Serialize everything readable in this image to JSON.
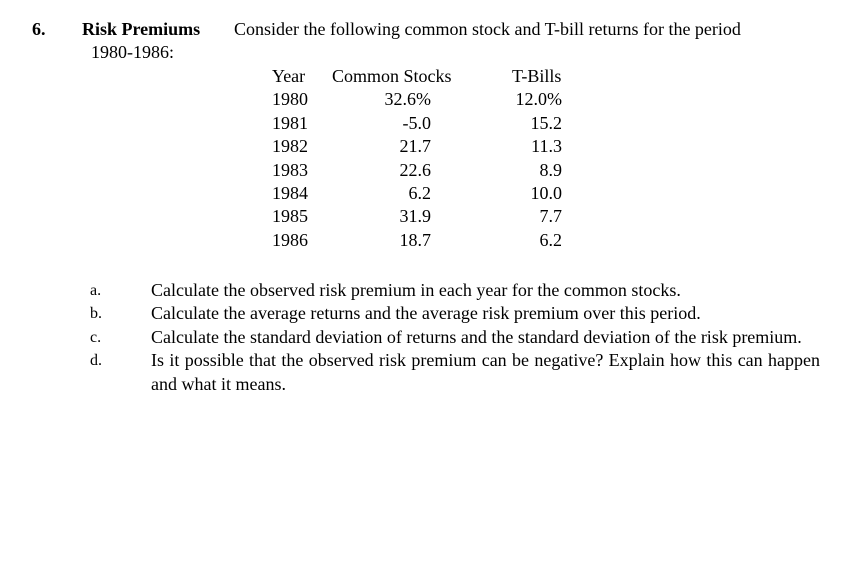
{
  "problem": {
    "number": "6.",
    "title": "Risk Premiums",
    "intro": "Consider the following common stock and T-bill returns for the period",
    "period": "1980-1986:"
  },
  "table": {
    "headers": {
      "year": "Year",
      "stocks": "Common Stocks",
      "bills": "T-Bills"
    },
    "rows": [
      {
        "year": "1980",
        "stocks": "32.6%",
        "bills": "12.0%"
      },
      {
        "year": "1981",
        "stocks": "-5.0",
        "bills": "15.2"
      },
      {
        "year": "1982",
        "stocks": "21.7",
        "bills": "11.3"
      },
      {
        "year": "1983",
        "stocks": "22.6",
        "bills": "8.9"
      },
      {
        "year": "1984",
        "stocks": "6.2",
        "bills": "10.0"
      },
      {
        "year": "1985",
        "stocks": "31.9",
        "bills": "7.7"
      },
      {
        "year": "1986",
        "stocks": "18.7",
        "bills": "6.2"
      }
    ]
  },
  "questions": [
    {
      "letter": "a.",
      "text": "Calculate the observed risk premium in each year for the common stocks."
    },
    {
      "letter": "b.",
      "text": "Calculate the average returns and the average risk premium over this period."
    },
    {
      "letter": "c.",
      "text": "Calculate the standard deviation of returns and the standard deviation of the risk premium."
    },
    {
      "letter": "d.",
      "text": "Is it possible that the observed risk premium can be negative? Explain how this can happen and what it means."
    }
  ]
}
